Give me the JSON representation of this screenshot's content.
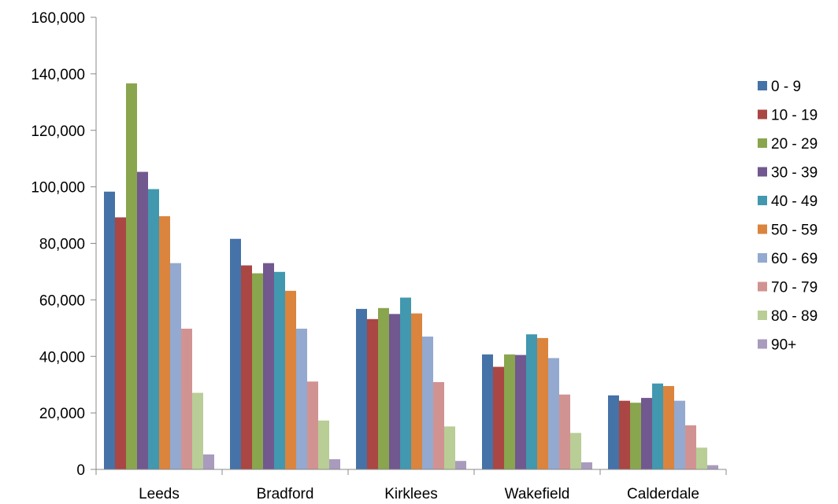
{
  "chart_data": {
    "type": "bar",
    "title": "",
    "xlabel": "",
    "ylabel": "",
    "categories": [
      "Leeds",
      "Bradford",
      "Kirklees",
      "Wakefield",
      "Calderdale"
    ],
    "ylim": [
      0,
      160000
    ],
    "yticks": [
      0,
      20000,
      40000,
      60000,
      80000,
      100000,
      120000,
      140000,
      160000
    ],
    "ytick_labels": [
      "0",
      "20,000",
      "40,000",
      "60,000",
      "80,000",
      "100,000",
      "120,000",
      "140,000",
      "160,000"
    ],
    "grid": false,
    "legend_position": "right",
    "series": [
      {
        "name": "0 - 9",
        "color": "#4572A7",
        "values": [
          98300,
          81600,
          56800,
          40700,
          26200
        ]
      },
      {
        "name": "10 - 19",
        "color": "#AA4643",
        "values": [
          89200,
          72200,
          53200,
          36300,
          24300
        ]
      },
      {
        "name": "20 - 29",
        "color": "#89A54E",
        "values": [
          136600,
          69400,
          57100,
          40700,
          23600
        ]
      },
      {
        "name": "30 - 39",
        "color": "#71588F",
        "values": [
          105300,
          73000,
          55000,
          40500,
          25300
        ]
      },
      {
        "name": "40 - 49",
        "color": "#4198AF",
        "values": [
          99200,
          69900,
          60800,
          47800,
          30400
        ]
      },
      {
        "name": "50 - 59",
        "color": "#DB843D",
        "values": [
          89600,
          63200,
          55200,
          46500,
          29500
        ]
      },
      {
        "name": "60 - 69",
        "color": "#93A9CF",
        "values": [
          73000,
          49800,
          47000,
          39400,
          24300
        ]
      },
      {
        "name": "70 - 79",
        "color": "#D19392",
        "values": [
          49800,
          31100,
          30900,
          26500,
          15600
        ]
      },
      {
        "name": "80 - 89",
        "color": "#B9CD96",
        "values": [
          27100,
          17300,
          15200,
          12900,
          7700
        ]
      },
      {
        "name": "90+",
        "color": "#A99BBD",
        "values": [
          5300,
          3600,
          3000,
          2500,
          1500
        ]
      }
    ]
  }
}
